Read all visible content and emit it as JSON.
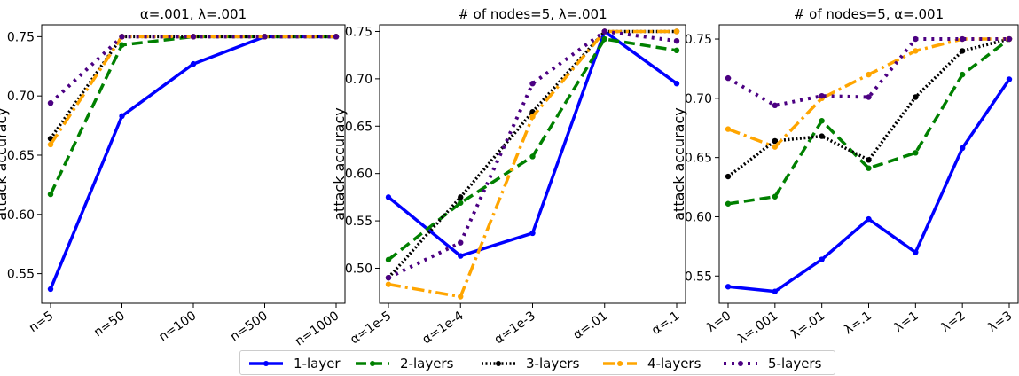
{
  "chart_data": [
    {
      "type": "line",
      "title": "α=.001, λ=.001",
      "ylabel": "attack accuracy",
      "categories": [
        "n=5",
        "n=50",
        "n=100",
        "n=500",
        "n=1000"
      ],
      "ylim": [
        0.525,
        0.76
      ],
      "yticks": [
        0.55,
        0.6,
        0.65,
        0.7,
        0.75
      ],
      "series": [
        {
          "name": "1-layer",
          "values": [
            0.537,
            0.683,
            0.727,
            0.75,
            0.75
          ]
        },
        {
          "name": "2-layers",
          "values": [
            0.617,
            0.743,
            0.75,
            0.75,
            0.75
          ]
        },
        {
          "name": "3-layers",
          "values": [
            0.664,
            0.75,
            0.75,
            0.75,
            0.75
          ]
        },
        {
          "name": "4-layers",
          "values": [
            0.659,
            0.75,
            0.75,
            0.75,
            0.75
          ]
        },
        {
          "name": "5-layers",
          "values": [
            0.694,
            0.75,
            0.75,
            0.75,
            0.75
          ]
        }
      ]
    },
    {
      "type": "line",
      "title": "# of nodes=5, λ=.001",
      "ylabel": "attack accuracy",
      "categories": [
        "α=1e-5",
        "α=1e-4",
        "α=1e-3",
        "α=.01",
        "α=.1"
      ],
      "ylim": [
        0.463,
        0.757
      ],
      "yticks": [
        0.5,
        0.55,
        0.6,
        0.65,
        0.7,
        0.75
      ],
      "series": [
        {
          "name": "1-layer",
          "values": [
            0.575,
            0.513,
            0.537,
            0.75,
            0.695
          ]
        },
        {
          "name": "2-layers",
          "values": [
            0.509,
            0.569,
            0.618,
            0.742,
            0.73
          ]
        },
        {
          "name": "3-layers",
          "values": [
            0.49,
            0.575,
            0.665,
            0.75,
            0.75
          ]
        },
        {
          "name": "4-layers",
          "values": [
            0.483,
            0.47,
            0.66,
            0.75,
            0.75
          ]
        },
        {
          "name": "5-layers",
          "values": [
            0.49,
            0.527,
            0.695,
            0.75,
            0.74
          ]
        }
      ]
    },
    {
      "type": "line",
      "title": "# of nodes=5, α=.001",
      "ylabel": "attack accuracy",
      "categories": [
        "λ=0",
        "λ=.001",
        "λ=.01",
        "λ=.1",
        "λ=1",
        "λ=2",
        "λ=3"
      ],
      "ylim": [
        0.527,
        0.762
      ],
      "yticks": [
        0.55,
        0.6,
        0.65,
        0.7,
        0.75
      ],
      "series": [
        {
          "name": "1-layer",
          "values": [
            0.541,
            0.537,
            0.564,
            0.598,
            0.57,
            0.658,
            0.716
          ]
        },
        {
          "name": "2-layers",
          "values": [
            0.611,
            0.617,
            0.681,
            0.641,
            0.654,
            0.72,
            0.75
          ]
        },
        {
          "name": "3-layers",
          "values": [
            0.634,
            0.664,
            0.668,
            0.648,
            0.701,
            0.74,
            0.75
          ]
        },
        {
          "name": "4-layers",
          "values": [
            0.674,
            0.659,
            0.7,
            0.72,
            0.74,
            0.75,
            0.75
          ]
        },
        {
          "name": "5-layers",
          "values": [
            0.717,
            0.694,
            0.702,
            0.701,
            0.75,
            0.75,
            0.75
          ]
        }
      ]
    }
  ],
  "legend": {
    "items": [
      {
        "label": "1-layer",
        "color": "#0000ff",
        "style": "solid"
      },
      {
        "label": "2-layers",
        "color": "#008000",
        "style": "dashed"
      },
      {
        "label": "3-layers",
        "color": "#000000",
        "style": "dotted"
      },
      {
        "label": "4-layers",
        "color": "#ffa500",
        "style": "dashdot"
      },
      {
        "label": "5-layers",
        "color": "#4b0082",
        "style": "dotted-thick"
      }
    ]
  }
}
